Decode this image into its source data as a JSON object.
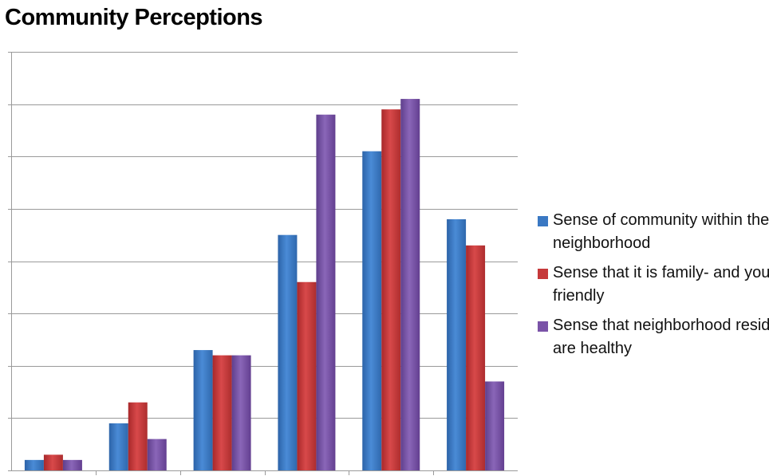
{
  "chart_data": {
    "type": "bar",
    "title": "Community Perceptions",
    "xlabel": "",
    "ylabel": "",
    "categories": [
      "",
      "",
      "",
      "",
      "",
      ""
    ],
    "ylim": [
      0,
      8
    ],
    "grid": true,
    "legend_position": "right",
    "series": [
      {
        "name": "Sense of community within the neighborhood",
        "color": "#3a78c3",
        "values": [
          0.2,
          0.9,
          2.3,
          4.5,
          6.1,
          4.8
        ]
      },
      {
        "name": "Sense that it is family- and youth- friendly",
        "color": "#c6393a",
        "values": [
          0.3,
          1.3,
          2.2,
          3.6,
          6.9,
          4.3
        ]
      },
      {
        "name": "Sense that neighborhood residents are healthy",
        "color": "#7a53a8",
        "values": [
          0.2,
          0.6,
          2.2,
          6.8,
          7.1,
          1.7
        ]
      }
    ]
  }
}
